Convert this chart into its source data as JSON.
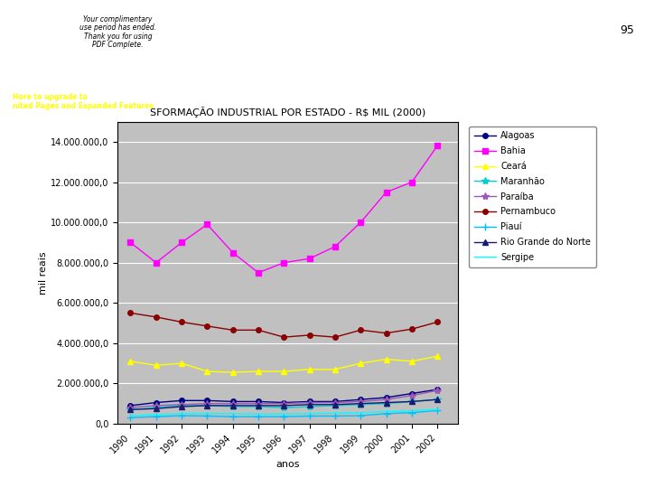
{
  "title": "SFORMAÇÃO INDUSTRIAL POR ESTADO - R$ MIL (2000)",
  "xlabel": "anos",
  "ylabel": "mil reais",
  "years": [
    1990,
    1991,
    1992,
    1993,
    1994,
    1995,
    1996,
    1997,
    1998,
    1999,
    2000,
    2001,
    2002
  ],
  "series": {
    "Alagoas": {
      "color": "#000080",
      "marker": "o",
      "markersize": 4,
      "values": [
        900000,
        1050000,
        1150000,
        1150000,
        1100000,
        1100000,
        1050000,
        1100000,
        1100000,
        1200000,
        1300000,
        1500000,
        1700000
      ]
    },
    "Bahia": {
      "color": "#FF00FF",
      "marker": "s",
      "markersize": 5,
      "values": [
        9000000,
        8000000,
        9000000,
        9900000,
        8500000,
        7500000,
        8000000,
        8200000,
        8800000,
        10000000,
        11500000,
        12000000,
        13800000
      ]
    },
    "Ceará": {
      "color": "#FFFF00",
      "marker": "^",
      "markersize": 5,
      "values": [
        3100000,
        2900000,
        3000000,
        2600000,
        2550000,
        2600000,
        2600000,
        2700000,
        2700000,
        3000000,
        3200000,
        3100000,
        3350000
      ]
    },
    "Maranhão": {
      "color": "#00CED1",
      "marker": "*",
      "markersize": 6,
      "values": [
        700000,
        800000,
        900000,
        900000,
        850000,
        850000,
        800000,
        850000,
        900000,
        950000,
        1000000,
        1100000,
        1200000
      ]
    },
    "Paraíba": {
      "color": "#9B59B6",
      "marker": "*",
      "markersize": 6,
      "values": [
        800000,
        900000,
        950000,
        1000000,
        1000000,
        1000000,
        1000000,
        1050000,
        1050000,
        1100000,
        1200000,
        1400000,
        1650000
      ]
    },
    "Pernambuco": {
      "color": "#8B0000",
      "marker": "o",
      "markersize": 4,
      "values": [
        5500000,
        5300000,
        5050000,
        4850000,
        4650000,
        4650000,
        4300000,
        4400000,
        4300000,
        4650000,
        4500000,
        4700000,
        5050000
      ]
    },
    "Piauí": {
      "color": "#00BFFF",
      "marker": "+",
      "markersize": 6,
      "values": [
        300000,
        350000,
        400000,
        380000,
        350000,
        350000,
        350000,
        380000,
        380000,
        400000,
        500000,
        550000,
        650000
      ]
    },
    "Rio Grande do Norte": {
      "color": "#191970",
      "marker": "^",
      "markersize": 4,
      "values": [
        700000,
        750000,
        850000,
        900000,
        900000,
        900000,
        900000,
        950000,
        950000,
        1000000,
        1050000,
        1100000,
        1200000
      ]
    },
    "Sergipe": {
      "color": "#00FFFF",
      "marker": null,
      "markersize": 0,
      "values": [
        400000,
        450000,
        500000,
        500000,
        500000,
        480000,
        480000,
        500000,
        520000,
        550000,
        600000,
        650000,
        700000
      ]
    }
  },
  "ylim": [
    0,
    15000000
  ],
  "yticks": [
    0,
    2000000,
    4000000,
    6000000,
    8000000,
    10000000,
    12000000,
    14000000
  ],
  "ytick_labels": [
    "0,0",
    "2.000.000,0",
    "4.000.000,0",
    "6.000.000,0",
    "8.000.000,0",
    "10.000.000,0",
    "12.000.000,0",
    "14.000.000,0"
  ],
  "plot_bg_color": "#C0C0C0",
  "fig_bg_color": "#FFFFFF",
  "grid_color": "#FFFFFF",
  "legend_fontsize": 7,
  "axis_fontsize": 7,
  "title_fontsize": 8,
  "page_number": "95",
  "watermark_bg": "#DDEEFF"
}
